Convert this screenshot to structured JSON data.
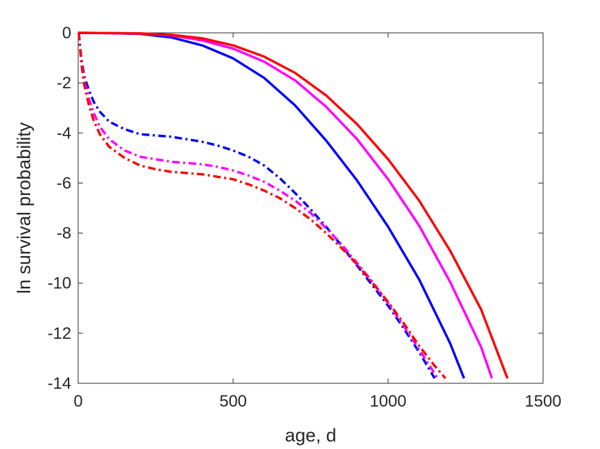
{
  "chart_data": {
    "type": "line",
    "title": "",
    "xlabel": "age, d",
    "ylabel": "ln survival probability",
    "xlim": [
      0,
      1500
    ],
    "ylim": [
      -14,
      0
    ],
    "xticks": [
      0,
      500,
      1000,
      1500
    ],
    "yticks": [
      0,
      -2,
      -4,
      -6,
      -8,
      -10,
      -12,
      -14
    ],
    "grid": false,
    "legend": "none",
    "series": [
      {
        "color": "#0000ff",
        "style": "solid",
        "points": [
          [
            0,
            0
          ],
          [
            100,
            -0.01
          ],
          [
            200,
            -0.04
          ],
          [
            300,
            -0.18
          ],
          [
            400,
            -0.5
          ],
          [
            500,
            -1.02
          ],
          [
            600,
            -1.8
          ],
          [
            700,
            -2.9
          ],
          [
            800,
            -4.3
          ],
          [
            900,
            -5.9
          ],
          [
            1000,
            -7.75
          ],
          [
            1100,
            -9.85
          ],
          [
            1200,
            -12.4
          ],
          [
            1245,
            -13.8
          ]
        ]
      },
      {
        "color": "#ff00ff",
        "style": "solid",
        "points": [
          [
            0,
            0
          ],
          [
            100,
            -0.01
          ],
          [
            200,
            -0.03
          ],
          [
            300,
            -0.1
          ],
          [
            400,
            -0.3
          ],
          [
            500,
            -0.63
          ],
          [
            600,
            -1.15
          ],
          [
            700,
            -1.9
          ],
          [
            800,
            -2.95
          ],
          [
            900,
            -4.25
          ],
          [
            1000,
            -5.85
          ],
          [
            1100,
            -7.7
          ],
          [
            1200,
            -9.95
          ],
          [
            1300,
            -12.55
          ],
          [
            1335,
            -13.8
          ]
        ]
      },
      {
        "color": "#ff0000",
        "style": "solid",
        "points": [
          [
            0,
            0
          ],
          [
            100,
            -0.01
          ],
          [
            200,
            -0.02
          ],
          [
            300,
            -0.08
          ],
          [
            400,
            -0.22
          ],
          [
            500,
            -0.5
          ],
          [
            600,
            -0.95
          ],
          [
            700,
            -1.6
          ],
          [
            800,
            -2.5
          ],
          [
            900,
            -3.65
          ],
          [
            1000,
            -5.05
          ],
          [
            1100,
            -6.7
          ],
          [
            1200,
            -8.7
          ],
          [
            1300,
            -11.05
          ],
          [
            1385,
            -13.8
          ]
        ]
      },
      {
        "color": "#0000ff",
        "style": "dashdot",
        "points": [
          [
            2,
            0
          ],
          [
            10,
            -1
          ],
          [
            20,
            -1.75
          ],
          [
            35,
            -2.3
          ],
          [
            50,
            -2.75
          ],
          [
            70,
            -3.15
          ],
          [
            100,
            -3.55
          ],
          [
            150,
            -3.85
          ],
          [
            200,
            -4.05
          ],
          [
            250,
            -4.1
          ],
          [
            300,
            -4.15
          ],
          [
            350,
            -4.25
          ],
          [
            400,
            -4.35
          ],
          [
            450,
            -4.5
          ],
          [
            500,
            -4.7
          ],
          [
            550,
            -4.95
          ],
          [
            600,
            -5.3
          ],
          [
            650,
            -5.8
          ],
          [
            700,
            -6.4
          ],
          [
            750,
            -7.05
          ],
          [
            800,
            -7.75
          ],
          [
            850,
            -8.5
          ],
          [
            900,
            -9.3
          ],
          [
            950,
            -10.1
          ],
          [
            1000,
            -10.9
          ],
          [
            1050,
            -11.8
          ],
          [
            1100,
            -12.75
          ],
          [
            1150,
            -13.8
          ]
        ]
      },
      {
        "color": "#ff00ff",
        "style": "dashdot",
        "points": [
          [
            2,
            0
          ],
          [
            10,
            -1.1
          ],
          [
            20,
            -1.95
          ],
          [
            35,
            -2.65
          ],
          [
            50,
            -3.2
          ],
          [
            70,
            -3.75
          ],
          [
            100,
            -4.25
          ],
          [
            150,
            -4.7
          ],
          [
            200,
            -4.95
          ],
          [
            250,
            -5.05
          ],
          [
            300,
            -5.15
          ],
          [
            350,
            -5.2
          ],
          [
            400,
            -5.25
          ],
          [
            450,
            -5.35
          ],
          [
            500,
            -5.5
          ],
          [
            550,
            -5.7
          ],
          [
            600,
            -5.95
          ],
          [
            650,
            -6.3
          ],
          [
            700,
            -6.7
          ],
          [
            750,
            -7.2
          ],
          [
            800,
            -7.8
          ],
          [
            850,
            -8.45
          ],
          [
            900,
            -9.2
          ],
          [
            950,
            -9.95
          ],
          [
            1000,
            -10.8
          ],
          [
            1050,
            -11.7
          ],
          [
            1100,
            -12.65
          ],
          [
            1160,
            -13.8
          ]
        ]
      },
      {
        "color": "#ff0000",
        "style": "dashdot",
        "points": [
          [
            2,
            0
          ],
          [
            10,
            -1.2
          ],
          [
            20,
            -2.1
          ],
          [
            35,
            -2.9
          ],
          [
            50,
            -3.5
          ],
          [
            70,
            -4.05
          ],
          [
            100,
            -4.55
          ],
          [
            150,
            -5.0
          ],
          [
            200,
            -5.3
          ],
          [
            250,
            -5.45
          ],
          [
            300,
            -5.55
          ],
          [
            350,
            -5.6
          ],
          [
            400,
            -5.65
          ],
          [
            450,
            -5.75
          ],
          [
            500,
            -5.85
          ],
          [
            550,
            -6.05
          ],
          [
            600,
            -6.3
          ],
          [
            650,
            -6.6
          ],
          [
            700,
            -7.0
          ],
          [
            750,
            -7.45
          ],
          [
            800,
            -8.0
          ],
          [
            850,
            -8.6
          ],
          [
            900,
            -9.25
          ],
          [
            950,
            -10.0
          ],
          [
            1000,
            -10.75
          ],
          [
            1050,
            -11.6
          ],
          [
            1100,
            -12.5
          ],
          [
            1150,
            -13.3
          ],
          [
            1185,
            -13.8
          ]
        ]
      }
    ]
  }
}
